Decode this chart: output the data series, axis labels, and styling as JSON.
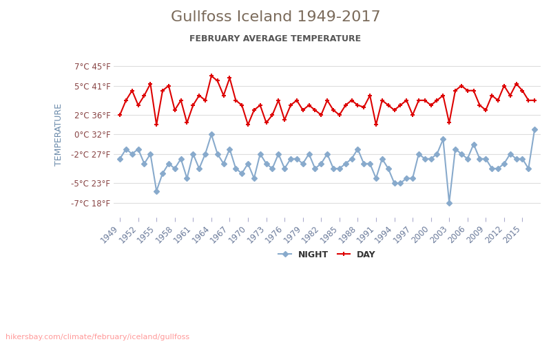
{
  "title": "Gullfoss Iceland 1949-2017",
  "subtitle": "FEBRUARY AVERAGE TEMPERATURE",
  "ylabel": "TEMPERATURE",
  "watermark": "hikersbay.com/climate/february/iceland/gullfoss",
  "title_color": "#7a6a5a",
  "subtitle_color": "#555555",
  "ylabel_color": "#6a8aaa",
  "watermark_color": "#ff9999",
  "background_color": "#ffffff",
  "grid_color": "#dddddd",
  "years": [
    1949,
    1950,
    1951,
    1952,
    1953,
    1954,
    1955,
    1956,
    1957,
    1958,
    1959,
    1960,
    1961,
    1962,
    1963,
    1964,
    1965,
    1966,
    1967,
    1968,
    1969,
    1970,
    1971,
    1972,
    1973,
    1974,
    1975,
    1976,
    1977,
    1978,
    1979,
    1980,
    1981,
    1982,
    1983,
    1984,
    1985,
    1986,
    1987,
    1988,
    1989,
    1990,
    1991,
    1992,
    1993,
    1994,
    1995,
    1996,
    1997,
    1998,
    1999,
    2000,
    2001,
    2002,
    2003,
    2004,
    2005,
    2006,
    2007,
    2008,
    2009,
    2010,
    2011,
    2012,
    2013,
    2014,
    2015,
    2016,
    2017
  ],
  "day_temps": [
    2.0,
    3.5,
    4.5,
    3.0,
    4.0,
    5.2,
    1.0,
    4.5,
    5.0,
    2.5,
    3.5,
    1.2,
    3.0,
    4.0,
    3.5,
    6.0,
    5.5,
    4.0,
    5.8,
    3.5,
    3.0,
    1.0,
    2.5,
    3.0,
    1.2,
    2.0,
    3.5,
    1.5,
    3.0,
    3.5,
    2.5,
    3.0,
    2.5,
    2.0,
    3.5,
    2.5,
    2.0,
    3.0,
    3.5,
    3.0,
    2.8,
    4.0,
    1.0,
    3.5,
    3.0,
    2.5,
    3.0,
    3.5,
    2.0,
    3.5,
    3.5,
    3.0,
    3.5,
    4.0,
    1.2,
    4.5,
    5.0,
    4.5,
    4.5,
    3.0,
    2.5,
    4.0,
    3.5,
    5.0,
    4.0,
    5.2,
    4.5,
    3.5,
    3.5
  ],
  "night_temps": [
    -2.5,
    -1.5,
    -2.0,
    -1.5,
    -3.0,
    -2.0,
    -5.8,
    -4.0,
    -3.0,
    -3.5,
    -2.5,
    -4.5,
    -2.0,
    -3.5,
    -2.0,
    0.0,
    -2.0,
    -3.0,
    -1.5,
    -3.5,
    -4.0,
    -3.0,
    -4.5,
    -2.0,
    -3.0,
    -3.5,
    -2.0,
    -3.5,
    -2.5,
    -2.5,
    -3.0,
    -2.0,
    -3.5,
    -3.0,
    -2.0,
    -3.5,
    -3.5,
    -3.0,
    -2.5,
    -1.5,
    -3.0,
    -3.0,
    -4.5,
    -2.5,
    -3.5,
    -5.0,
    -5.0,
    -4.5,
    -4.5,
    -2.0,
    -2.5,
    -2.5,
    -2.0,
    -0.5,
    -7.0,
    -1.5,
    -2.0,
    -2.5,
    -1.0,
    -2.5,
    -2.5,
    -3.5,
    -3.5,
    -3.0,
    -2.0,
    -2.5,
    -2.5,
    -3.5,
    0.5
  ],
  "day_color": "#dd0000",
  "night_color": "#88aacc",
  "day_marker": "+",
  "night_marker": "D",
  "day_linewidth": 1.5,
  "night_linewidth": 1.5,
  "day_markersize": 5,
  "night_markersize": 4,
  "yticks_c": [
    7,
    5,
    2,
    0,
    -2,
    -5,
    -7
  ],
  "yticks_f": [
    45,
    41,
    36,
    32,
    27,
    23,
    18
  ],
  "xtick_years": [
    1949,
    1952,
    1955,
    1958,
    1961,
    1964,
    1967,
    1970,
    1973,
    1976,
    1979,
    1982,
    1985,
    1988,
    1991,
    1994,
    1997,
    2000,
    2003,
    2006,
    2009,
    2012,
    2015
  ],
  "ylim": [
    -8.5,
    8.5
  ]
}
